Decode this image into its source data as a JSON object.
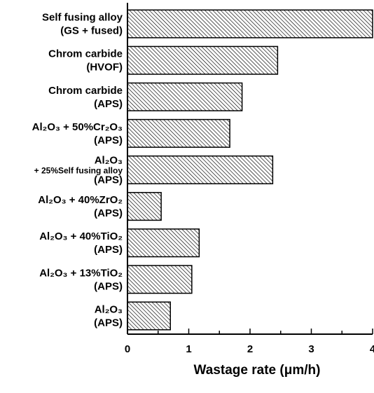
{
  "chart_data": {
    "type": "bar",
    "orientation": "horizontal",
    "categories": [
      [
        "Self fusing alloy",
        "(GS + fused)"
      ],
      [
        "Chrom carbide",
        "(HVOF)"
      ],
      [
        "Chrom carbide",
        "(APS)"
      ],
      [
        "Al₂O₃ + 50%Cr₂O₃",
        "(APS)"
      ],
      [
        "Al₂O₃",
        "+ 25%Self fusing alloy",
        "(APS)"
      ],
      [
        "Al₂O₃ + 40%ZrO₂",
        "(APS)"
      ],
      [
        "Al₂O₃ + 40%TiO₂",
        "(APS)"
      ],
      [
        "Al₂O₃ + 13%TiO₂",
        "(APS)"
      ],
      [
        "Al₂O₃",
        "(APS)"
      ]
    ],
    "values": [
      4.0,
      2.45,
      1.87,
      1.67,
      2.37,
      0.55,
      1.17,
      1.05,
      0.7
    ],
    "xlim": [
      0,
      4
    ],
    "xticks": [
      "0",
      "1",
      "2",
      "3",
      "4"
    ],
    "xlabel": "Wastage rate  (μm/h)",
    "ylabel": "",
    "title": "",
    "grid": false,
    "bar_fill": "hatched",
    "colors": {
      "bar_stroke": "#000000",
      "hatch": "#000000",
      "background": "#ffffff"
    }
  }
}
